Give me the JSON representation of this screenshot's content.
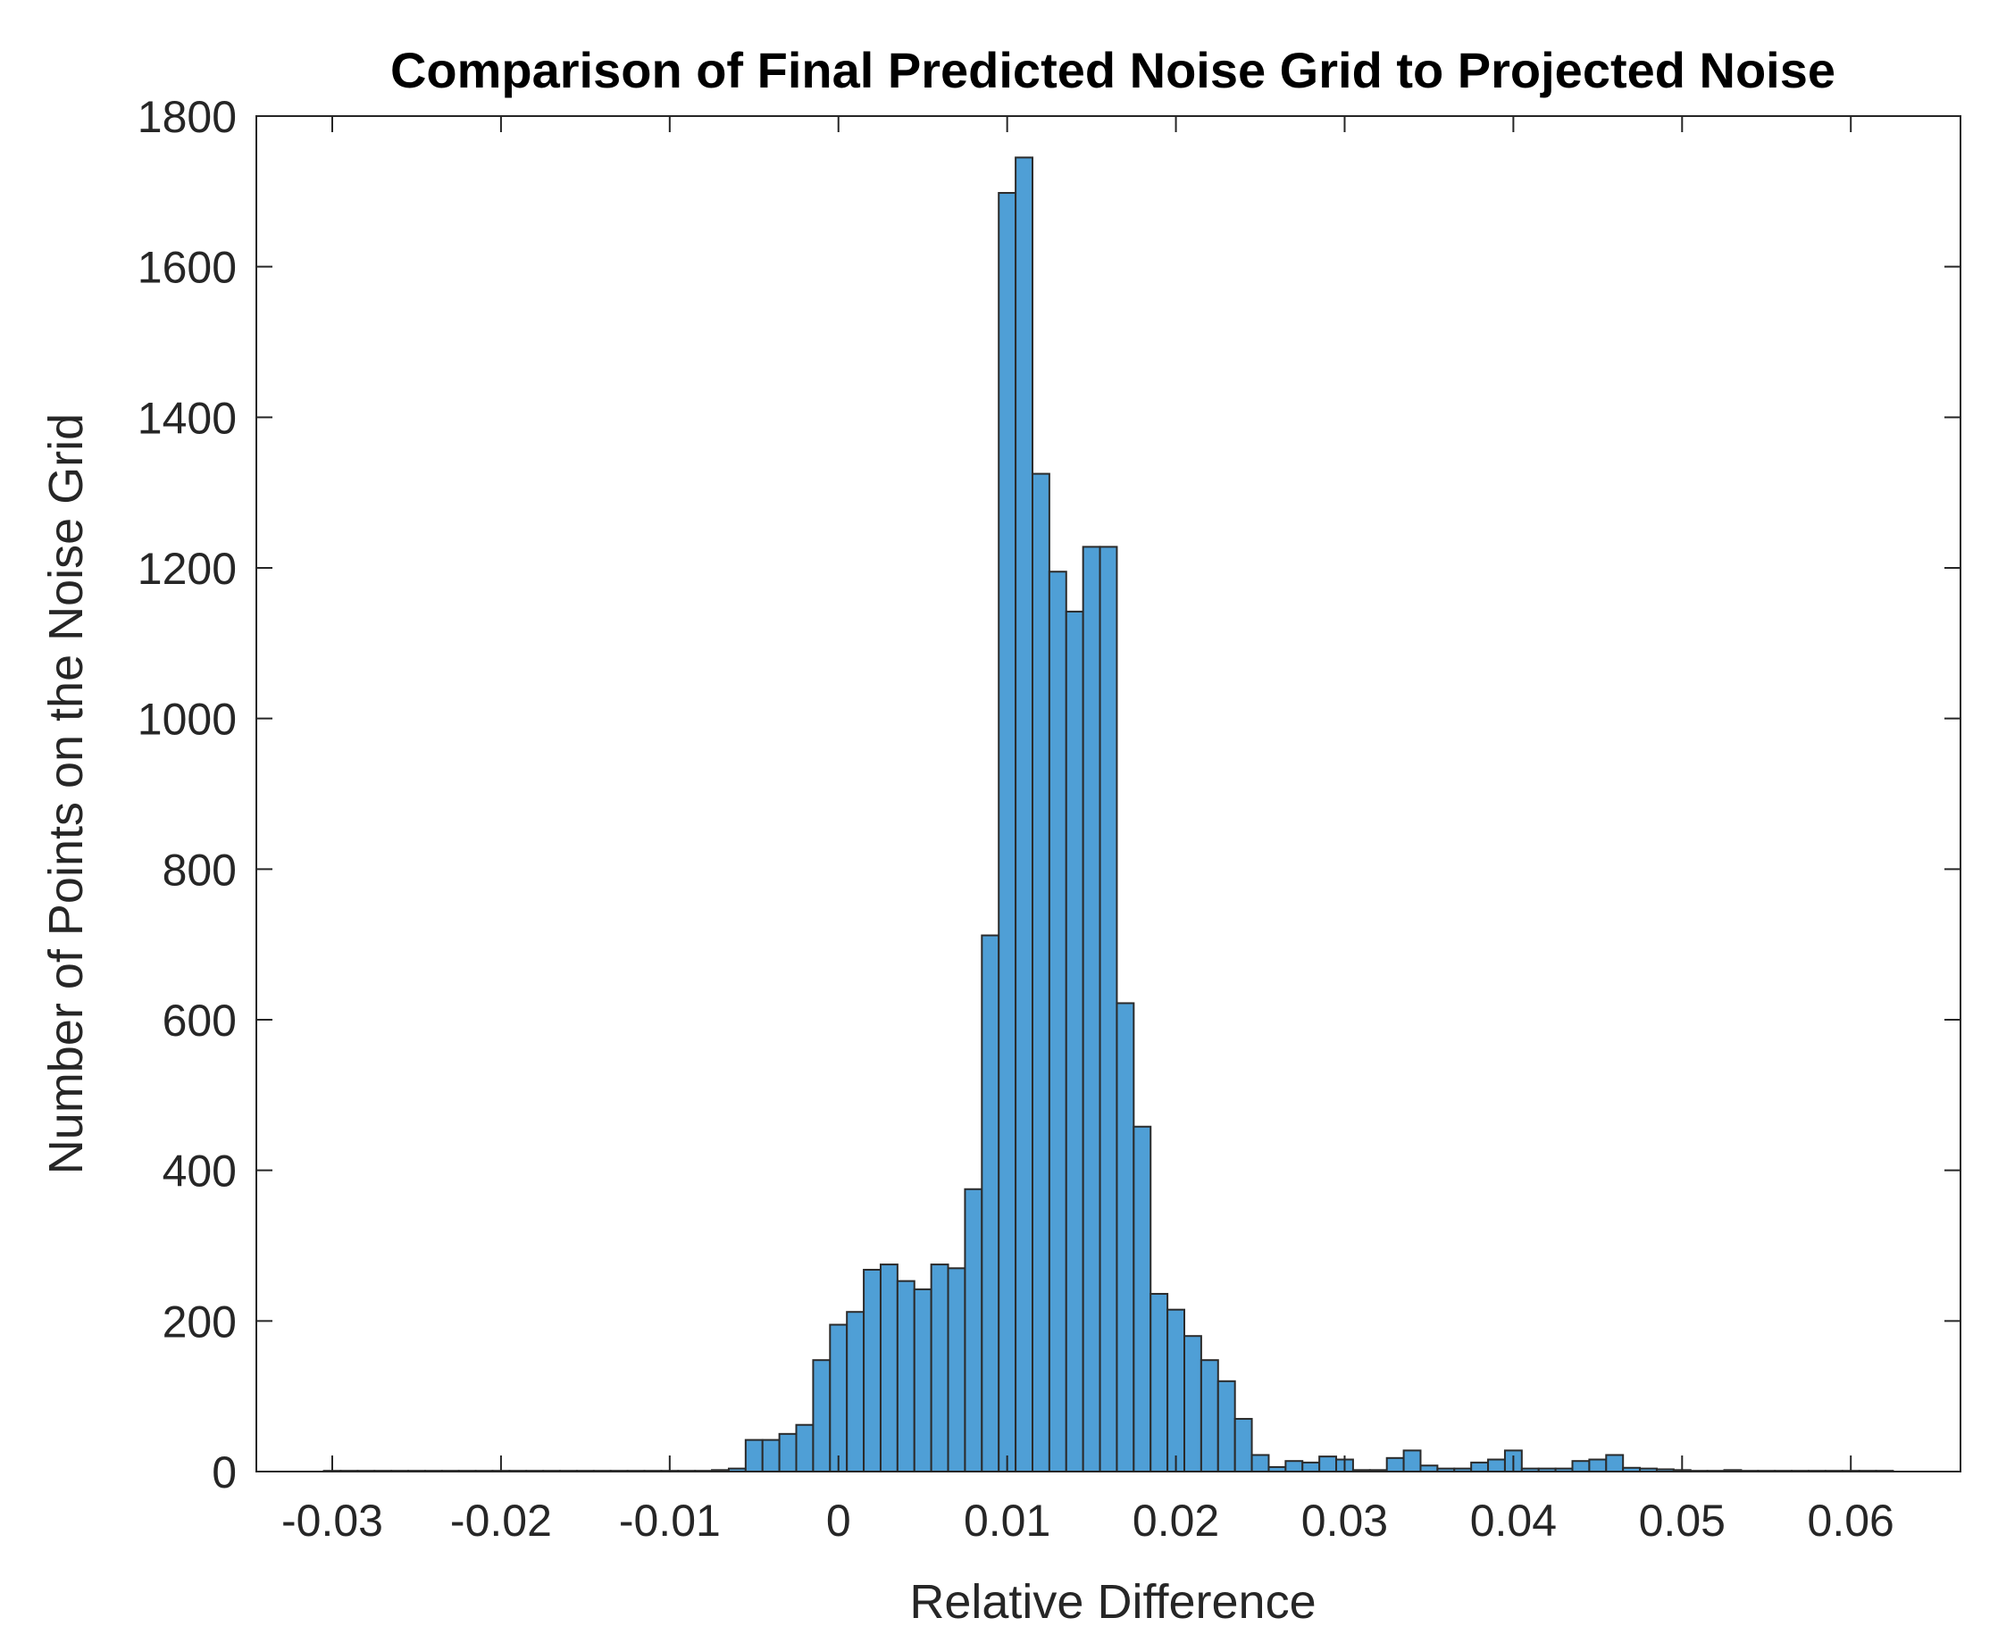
{
  "chart_data": {
    "type": "bar",
    "title": "Comparison of Final Predicted Noise Grid to Projected Noise",
    "xlabel": "Relative Difference",
    "ylabel": "Number of Points on the Noise Grid",
    "xlim": [
      -0.0345,
      0.0665
    ],
    "ylim": [
      0,
      1800
    ],
    "x_ticks": [
      -0.03,
      -0.02,
      -0.01,
      0,
      0.01,
      0.02,
      0.03,
      0.04,
      0.05,
      0.06
    ],
    "x_tick_labels": [
      "-0.03",
      "-0.02",
      "-0.01",
      "0",
      "0.01",
      "0.02",
      "0.03",
      "0.04",
      "0.05",
      "0.06"
    ],
    "y_ticks": [
      0,
      200,
      400,
      600,
      800,
      1000,
      1200,
      1400,
      1600,
      1800
    ],
    "y_tick_labels": [
      "0",
      "200",
      "400",
      "600",
      "800",
      "1000",
      "1200",
      "1400",
      "1600",
      "1800"
    ],
    "grid": false,
    "bar_color": "#4f9fd6",
    "edge_color": "#2b2b2b",
    "bin_width": 0.001,
    "bin_start": -0.0305,
    "values": [
      1,
      1,
      1,
      1,
      1,
      1,
      1,
      1,
      1,
      1,
      1,
      1,
      1,
      1,
      1,
      1,
      1,
      1,
      1,
      1,
      1,
      1,
      1,
      2,
      4,
      42,
      42,
      50,
      62,
      148,
      195,
      212,
      268,
      275,
      253,
      242,
      275,
      270,
      375,
      712,
      1698,
      1745,
      1325,
      1195,
      1142,
      1228,
      1228,
      622,
      458,
      236,
      215,
      180,
      148,
      120,
      70,
      22,
      6,
      14,
      12,
      20,
      16,
      2,
      2,
      18,
      28,
      8,
      4,
      4,
      12,
      16,
      28,
      4,
      4,
      4,
      14,
      16,
      22,
      5,
      4,
      3,
      2,
      1,
      1,
      2,
      1,
      1,
      1,
      1,
      1,
      1,
      1,
      1,
      1
    ]
  }
}
